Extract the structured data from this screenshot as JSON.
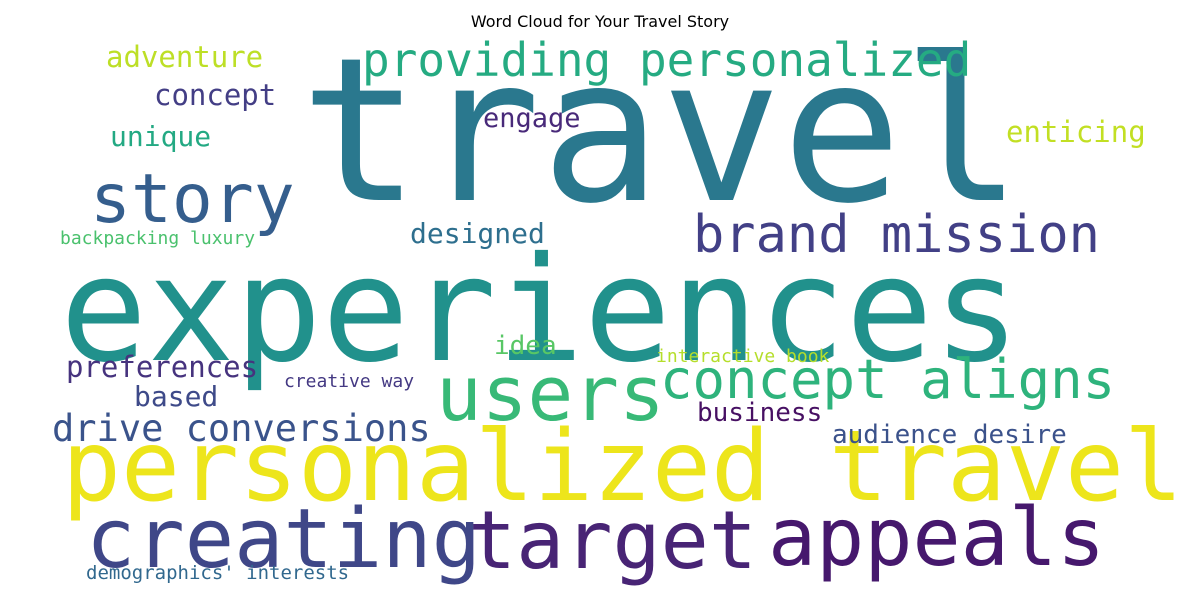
{
  "chart_data": {
    "type": "wordcloud",
    "title": "Word Cloud for Your Travel Story",
    "words": [
      {
        "text": "travel",
        "weight": 1.0,
        "color": "#2a788e"
      },
      {
        "text": "experiences",
        "weight": 0.86,
        "color": "#21918c"
      },
      {
        "text": "personalized travel",
        "weight": 0.64,
        "color": "#ede51b"
      },
      {
        "text": "target",
        "weight": 0.5,
        "color": "#482475"
      },
      {
        "text": "appeals",
        "weight": 0.5,
        "color": "#46186d"
      },
      {
        "text": "creating",
        "weight": 0.5,
        "color": "#3f4788"
      },
      {
        "text": "users",
        "weight": 0.48,
        "color": "#38b977"
      },
      {
        "text": "story",
        "weight": 0.45,
        "color": "#355e8d"
      },
      {
        "text": "concept aligns",
        "weight": 0.33,
        "color": "#2eb37c"
      },
      {
        "text": "brand mission",
        "weight": 0.32,
        "color": "#424086"
      },
      {
        "text": "providing personalized",
        "weight": 0.28,
        "color": "#25ab82"
      },
      {
        "text": "drive conversions",
        "weight": 0.24,
        "color": "#3a538b"
      },
      {
        "text": "adventure",
        "weight": 0.19,
        "color": "#bddf26"
      },
      {
        "text": "enticing",
        "weight": 0.19,
        "color": "#c2df23"
      },
      {
        "text": "preferences",
        "weight": 0.19,
        "color": "#46337e"
      },
      {
        "text": "concept",
        "weight": 0.19,
        "color": "#433e85"
      },
      {
        "text": "unique",
        "weight": 0.19,
        "color": "#23a983"
      },
      {
        "text": "designed",
        "weight": 0.18,
        "color": "#2e6f8e"
      },
      {
        "text": "engage",
        "weight": 0.18,
        "color": "#482979"
      },
      {
        "text": "based",
        "weight": 0.18,
        "color": "#3e4a89"
      },
      {
        "text": "business",
        "weight": 0.17,
        "color": "#471063"
      },
      {
        "text": "audience desire",
        "weight": 0.17,
        "color": "#3b528b"
      },
      {
        "text": "idea",
        "weight": 0.17,
        "color": "#58c765"
      },
      {
        "text": "backpacking luxury",
        "weight": 0.13,
        "color": "#4ac16d"
      },
      {
        "text": "interactive book",
        "weight": 0.12,
        "color": "#b5de2b"
      },
      {
        "text": "creative way",
        "weight": 0.12,
        "color": "#443983"
      },
      {
        "text": "demographics' interests",
        "weight": 0.13,
        "color": "#31688e"
      }
    ]
  }
}
